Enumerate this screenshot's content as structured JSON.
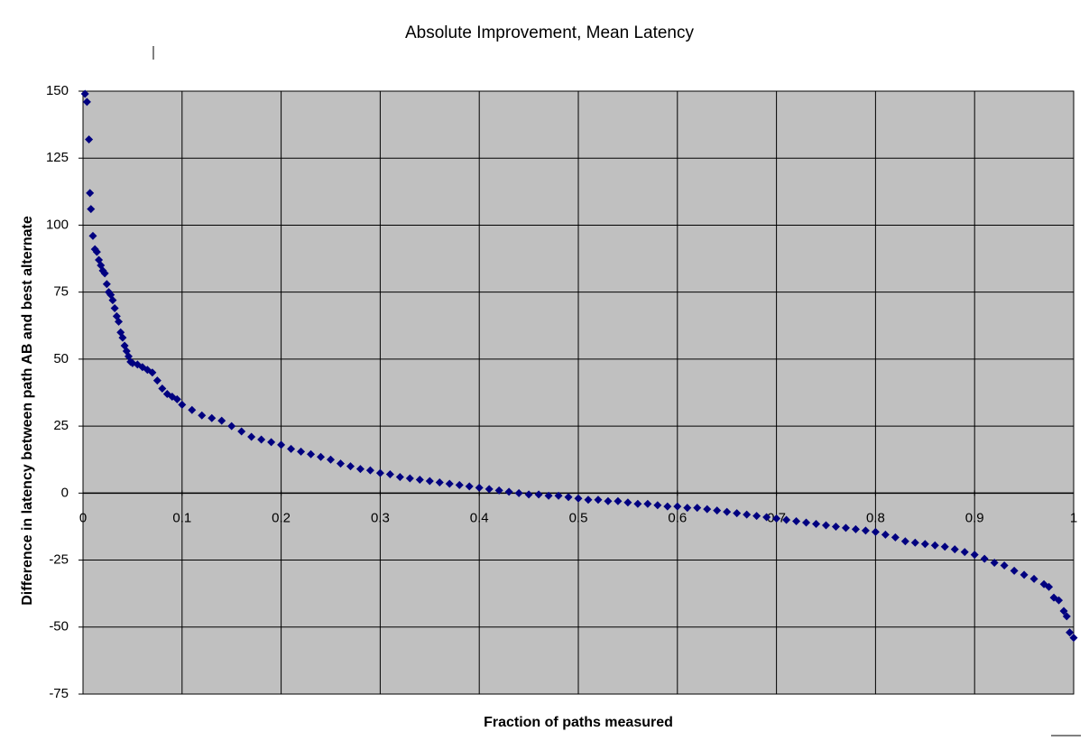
{
  "chart_data": {
    "type": "scatter",
    "title": "Absolute Improvement, Mean Latency",
    "x_label": "Fraction of paths measured",
    "y_label": "Difference in latency between path AB and best alternate",
    "color": "#000080",
    "background": "#c0c0c0",
    "grid": true,
    "xlim": [
      0,
      1
    ],
    "ylim": [
      -75,
      150
    ],
    "xticks": [
      0,
      0.1,
      0.2,
      0.3,
      0.4,
      0.5,
      0.6,
      0.7,
      0.8,
      0.9,
      1
    ],
    "yticks": [
      -75,
      -50,
      -25,
      0,
      25,
      50,
      75,
      100,
      125,
      150
    ],
    "x": [
      0.002,
      0.004,
      0.006,
      0.007,
      0.008,
      0.01,
      0.012,
      0.014,
      0.016,
      0.018,
      0.02,
      0.022,
      0.024,
      0.026,
      0.028,
      0.03,
      0.032,
      0.034,
      0.036,
      0.038,
      0.04,
      0.042,
      0.044,
      0.046,
      0.048,
      0.05,
      0.055,
      0.06,
      0.065,
      0.07,
      0.075,
      0.08,
      0.085,
      0.09,
      0.095,
      0.1,
      0.11,
      0.12,
      0.13,
      0.14,
      0.15,
      0.16,
      0.17,
      0.18,
      0.19,
      0.2,
      0.21,
      0.22,
      0.23,
      0.24,
      0.25,
      0.26,
      0.27,
      0.28,
      0.29,
      0.3,
      0.31,
      0.32,
      0.33,
      0.34,
      0.35,
      0.36,
      0.37,
      0.38,
      0.39,
      0.4,
      0.41,
      0.42,
      0.43,
      0.44,
      0.45,
      0.46,
      0.47,
      0.48,
      0.49,
      0.5,
      0.51,
      0.52,
      0.53,
      0.54,
      0.55,
      0.56,
      0.57,
      0.58,
      0.59,
      0.6,
      0.61,
      0.62,
      0.63,
      0.64,
      0.65,
      0.66,
      0.67,
      0.68,
      0.69,
      0.7,
      0.71,
      0.72,
      0.73,
      0.74,
      0.75,
      0.76,
      0.77,
      0.78,
      0.79,
      0.8,
      0.81,
      0.82,
      0.83,
      0.84,
      0.85,
      0.86,
      0.87,
      0.88,
      0.89,
      0.9,
      0.91,
      0.92,
      0.93,
      0.94,
      0.95,
      0.96,
      0.97,
      0.975,
      0.98,
      0.985,
      0.99,
      0.993,
      0.996,
      1.0
    ],
    "values": [
      149,
      146,
      132,
      112,
      106,
      96,
      91,
      90,
      87,
      85,
      83,
      82,
      78,
      75,
      74,
      72,
      69,
      66,
      64,
      60,
      58,
      55,
      53,
      51,
      49,
      48.5,
      48,
      47,
      46,
      45,
      42,
      39,
      37,
      36,
      35,
      33,
      31,
      29,
      28,
      27,
      25,
      23,
      21,
      20,
      19,
      18,
      16.5,
      15.5,
      14.5,
      13.5,
      12.5,
      11,
      10,
      9,
      8.5,
      7.5,
      7,
      6,
      5.5,
      5,
      4.5,
      4,
      3.5,
      3,
      2.5,
      2,
      1.5,
      1,
      0.5,
      0,
      -0.5,
      -0.5,
      -1,
      -1,
      -1.5,
      -2,
      -2.5,
      -2.5,
      -3,
      -3,
      -3.5,
      -4,
      -4,
      -4.5,
      -5,
      -5,
      -5.5,
      -5.5,
      -6,
      -6.5,
      -7,
      -7.5,
      -8,
      -8.5,
      -9,
      -9.5,
      -10,
      -10.5,
      -11,
      -11.5,
      -12,
      -12.5,
      -13,
      -13.5,
      -14,
      -14.5,
      -15.5,
      -16.5,
      -18,
      -18.5,
      -19,
      -19.5,
      -20,
      -21,
      -22,
      -23,
      -24.5,
      -26,
      -27,
      -29,
      -30.5,
      -32,
      -34,
      -35,
      -39,
      -40,
      -44,
      -46,
      -52,
      -54
    ]
  }
}
